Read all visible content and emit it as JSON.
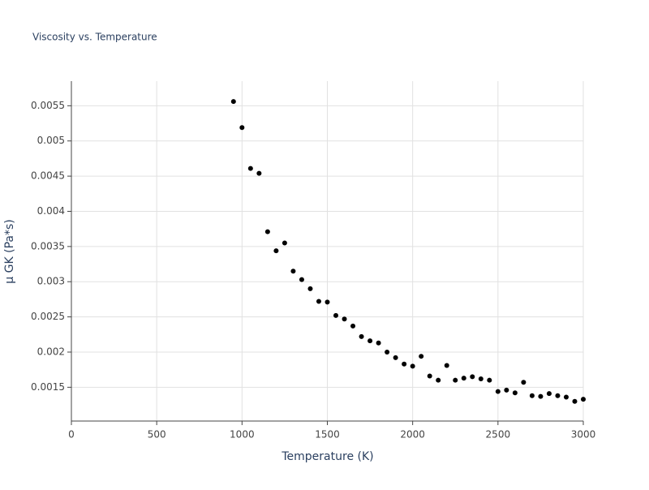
{
  "chart_data": {
    "type": "scatter",
    "title": "Viscosity vs. Temperature",
    "x_label": "Temperature (K)",
    "y_label": "μ GK (Pa*s)",
    "x": [
      950,
      1000,
      1050,
      1100,
      1150,
      1200,
      1250,
      1300,
      1350,
      1400,
      1450,
      1500,
      1550,
      1600,
      1650,
      1700,
      1750,
      1800,
      1850,
      1900,
      1950,
      2000,
      2050,
      2100,
      2150,
      2200,
      2250,
      2300,
      2350,
      2400,
      2450,
      2500,
      2550,
      2600,
      2650,
      2700,
      2750,
      2800,
      2850,
      2900,
      2950,
      3000
    ],
    "values": [
      0.00556,
      0.00519,
      0.00461,
      0.00454,
      0.00371,
      0.00344,
      0.00355,
      0.00315,
      0.00303,
      0.0029,
      0.00272,
      0.00271,
      0.00252,
      0.00247,
      0.00237,
      0.00222,
      0.00216,
      0.00213,
      0.002,
      0.00192,
      0.00183,
      0.0018,
      0.00194,
      0.00166,
      0.0016,
      0.00181,
      0.0016,
      0.00163,
      0.00165,
      0.00162,
      0.0016,
      0.00144,
      0.00146,
      0.00142,
      0.00157,
      0.00138,
      0.00137,
      0.00141,
      0.00138,
      0.00136,
      0.0013,
      0.00133
    ],
    "color": "#000000",
    "xlim": [
      0,
      3000
    ],
    "xticks": [
      0,
      500,
      1000,
      1500,
      2000,
      2500,
      3000
    ],
    "ylim": [
      0.00102,
      0.00585
    ],
    "yticks": [
      0.0015,
      0.002,
      0.0025,
      0.003,
      0.0035,
      0.004,
      0.0045,
      0.005,
      0.0055
    ],
    "grid": true
  }
}
